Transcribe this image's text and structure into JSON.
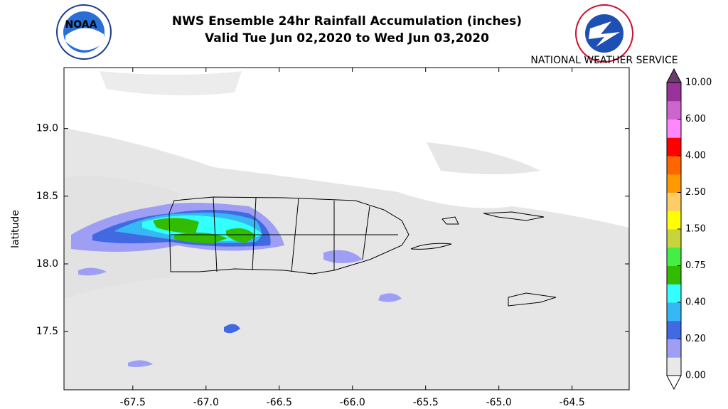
{
  "chart_data": {
    "type": "map",
    "title": "NWS Ensemble 24hr Rainfall Accumulation (inches)",
    "subtitle": "Valid Tue Jun 02,2020 to Wed Jun 03,2020",
    "ylabel": "latitude",
    "logo_text": [
      "NOAA",
      "NATIONAL WEATHER SERVICE"
    ],
    "xlim": [
      -67.97,
      -64.11
    ],
    "ylim": [
      17.07,
      19.45
    ],
    "xticks": [
      -67.5,
      {
        "value": -67,
        "label": "-67.0"
      },
      -66.5,
      {
        "value": -66,
        "label": "-66.0"
      },
      -65.5,
      {
        "value": -65,
        "label": "-65.0"
      },
      -64.5
    ],
    "yticks": [
      17.5,
      {
        "value": 18,
        "label": "18.0"
      },
      18.5,
      {
        "value": 19,
        "label": "19.0"
      }
    ],
    "colorbar_ticks": [
      {
        "value": 0,
        "label": "0.00"
      },
      {
        "value": 0.2,
        "label": "0.20"
      },
      {
        "value": 0.4,
        "label": "0.40"
      },
      0.75,
      {
        "value": 1.5,
        "label": "1.50"
      },
      {
        "value": 2.5,
        "label": "2.50"
      },
      {
        "value": 4,
        "label": "4.00"
      },
      {
        "value": 6,
        "label": "6.00"
      },
      {
        "value": 10,
        "label": "10.00"
      }
    ],
    "colorbar_colors": [
      "#e8e8e8",
      "#9e9ef5",
      "#4169e1",
      "#35b8f5",
      "#33ffff",
      "#33bb00",
      "#44ee44",
      "#c8d43c",
      "#ffff00",
      "#ffcc66",
      "#ff9900",
      "#ff6600",
      "#ff0000",
      "#ff88ff",
      "#cc66cc",
      "#993399"
    ],
    "colorbar_over": "#6a3d6a"
  }
}
